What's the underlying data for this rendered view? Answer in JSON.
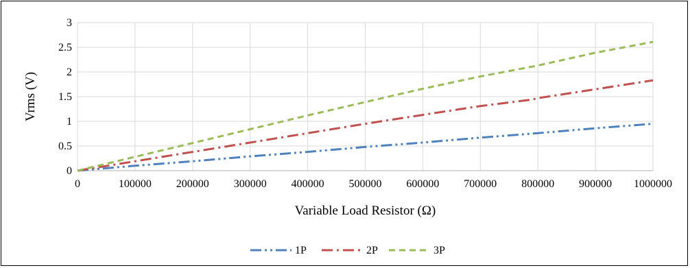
{
  "chart_data": {
    "type": "line",
    "xlabel": "Variable Load Resistor (Ω)",
    "ylabel": "Vrms (V)",
    "xlim": [
      0,
      1000000
    ],
    "ylim": [
      0,
      3
    ],
    "x_ticks": [
      0,
      100000,
      200000,
      300000,
      400000,
      500000,
      600000,
      700000,
      800000,
      900000,
      1000000
    ],
    "x_tick_labels": [
      "0",
      "100000",
      "200000",
      "300000",
      "400000",
      "500000",
      "600000",
      "700000",
      "800000",
      "900000",
      "1000000"
    ],
    "y_ticks": [
      0,
      0.5,
      1,
      1.5,
      2,
      2.5,
      3
    ],
    "y_tick_labels": [
      "0",
      "0.5",
      "1",
      "1.5",
      "2",
      "2.5",
      "3"
    ],
    "grid": true,
    "legend_position": "bottom",
    "series": [
      {
        "name": "1P",
        "color": "#4F81BD",
        "dash": "long-dash-dot-dot",
        "x": [
          0,
          100000,
          200000,
          300000,
          400000,
          500000,
          600000,
          700000,
          800000,
          900000,
          1000000
        ],
        "y": [
          0,
          0.1,
          0.19,
          0.29,
          0.38,
          0.48,
          0.57,
          0.67,
          0.76,
          0.86,
          0.95
        ]
      },
      {
        "name": "2P",
        "color": "#C0504D",
        "dash": "long-dash-dot",
        "x": [
          0,
          100000,
          200000,
          300000,
          400000,
          500000,
          600000,
          700000,
          790000,
          800000,
          900000,
          1000000
        ],
        "y": [
          0,
          0.19,
          0.38,
          0.57,
          0.76,
          0.95,
          1.13,
          1.31,
          1.44,
          1.47,
          1.65,
          1.83
        ]
      },
      {
        "name": "3P",
        "color": "#9BBB59",
        "dash": "dash",
        "x": [
          0,
          100000,
          200000,
          300000,
          400000,
          500000,
          600000,
          700000,
          800000,
          900000,
          1000000
        ],
        "y": [
          0,
          0.28,
          0.56,
          0.84,
          1.12,
          1.39,
          1.66,
          1.91,
          2.13,
          2.39,
          2.61
        ]
      }
    ]
  }
}
